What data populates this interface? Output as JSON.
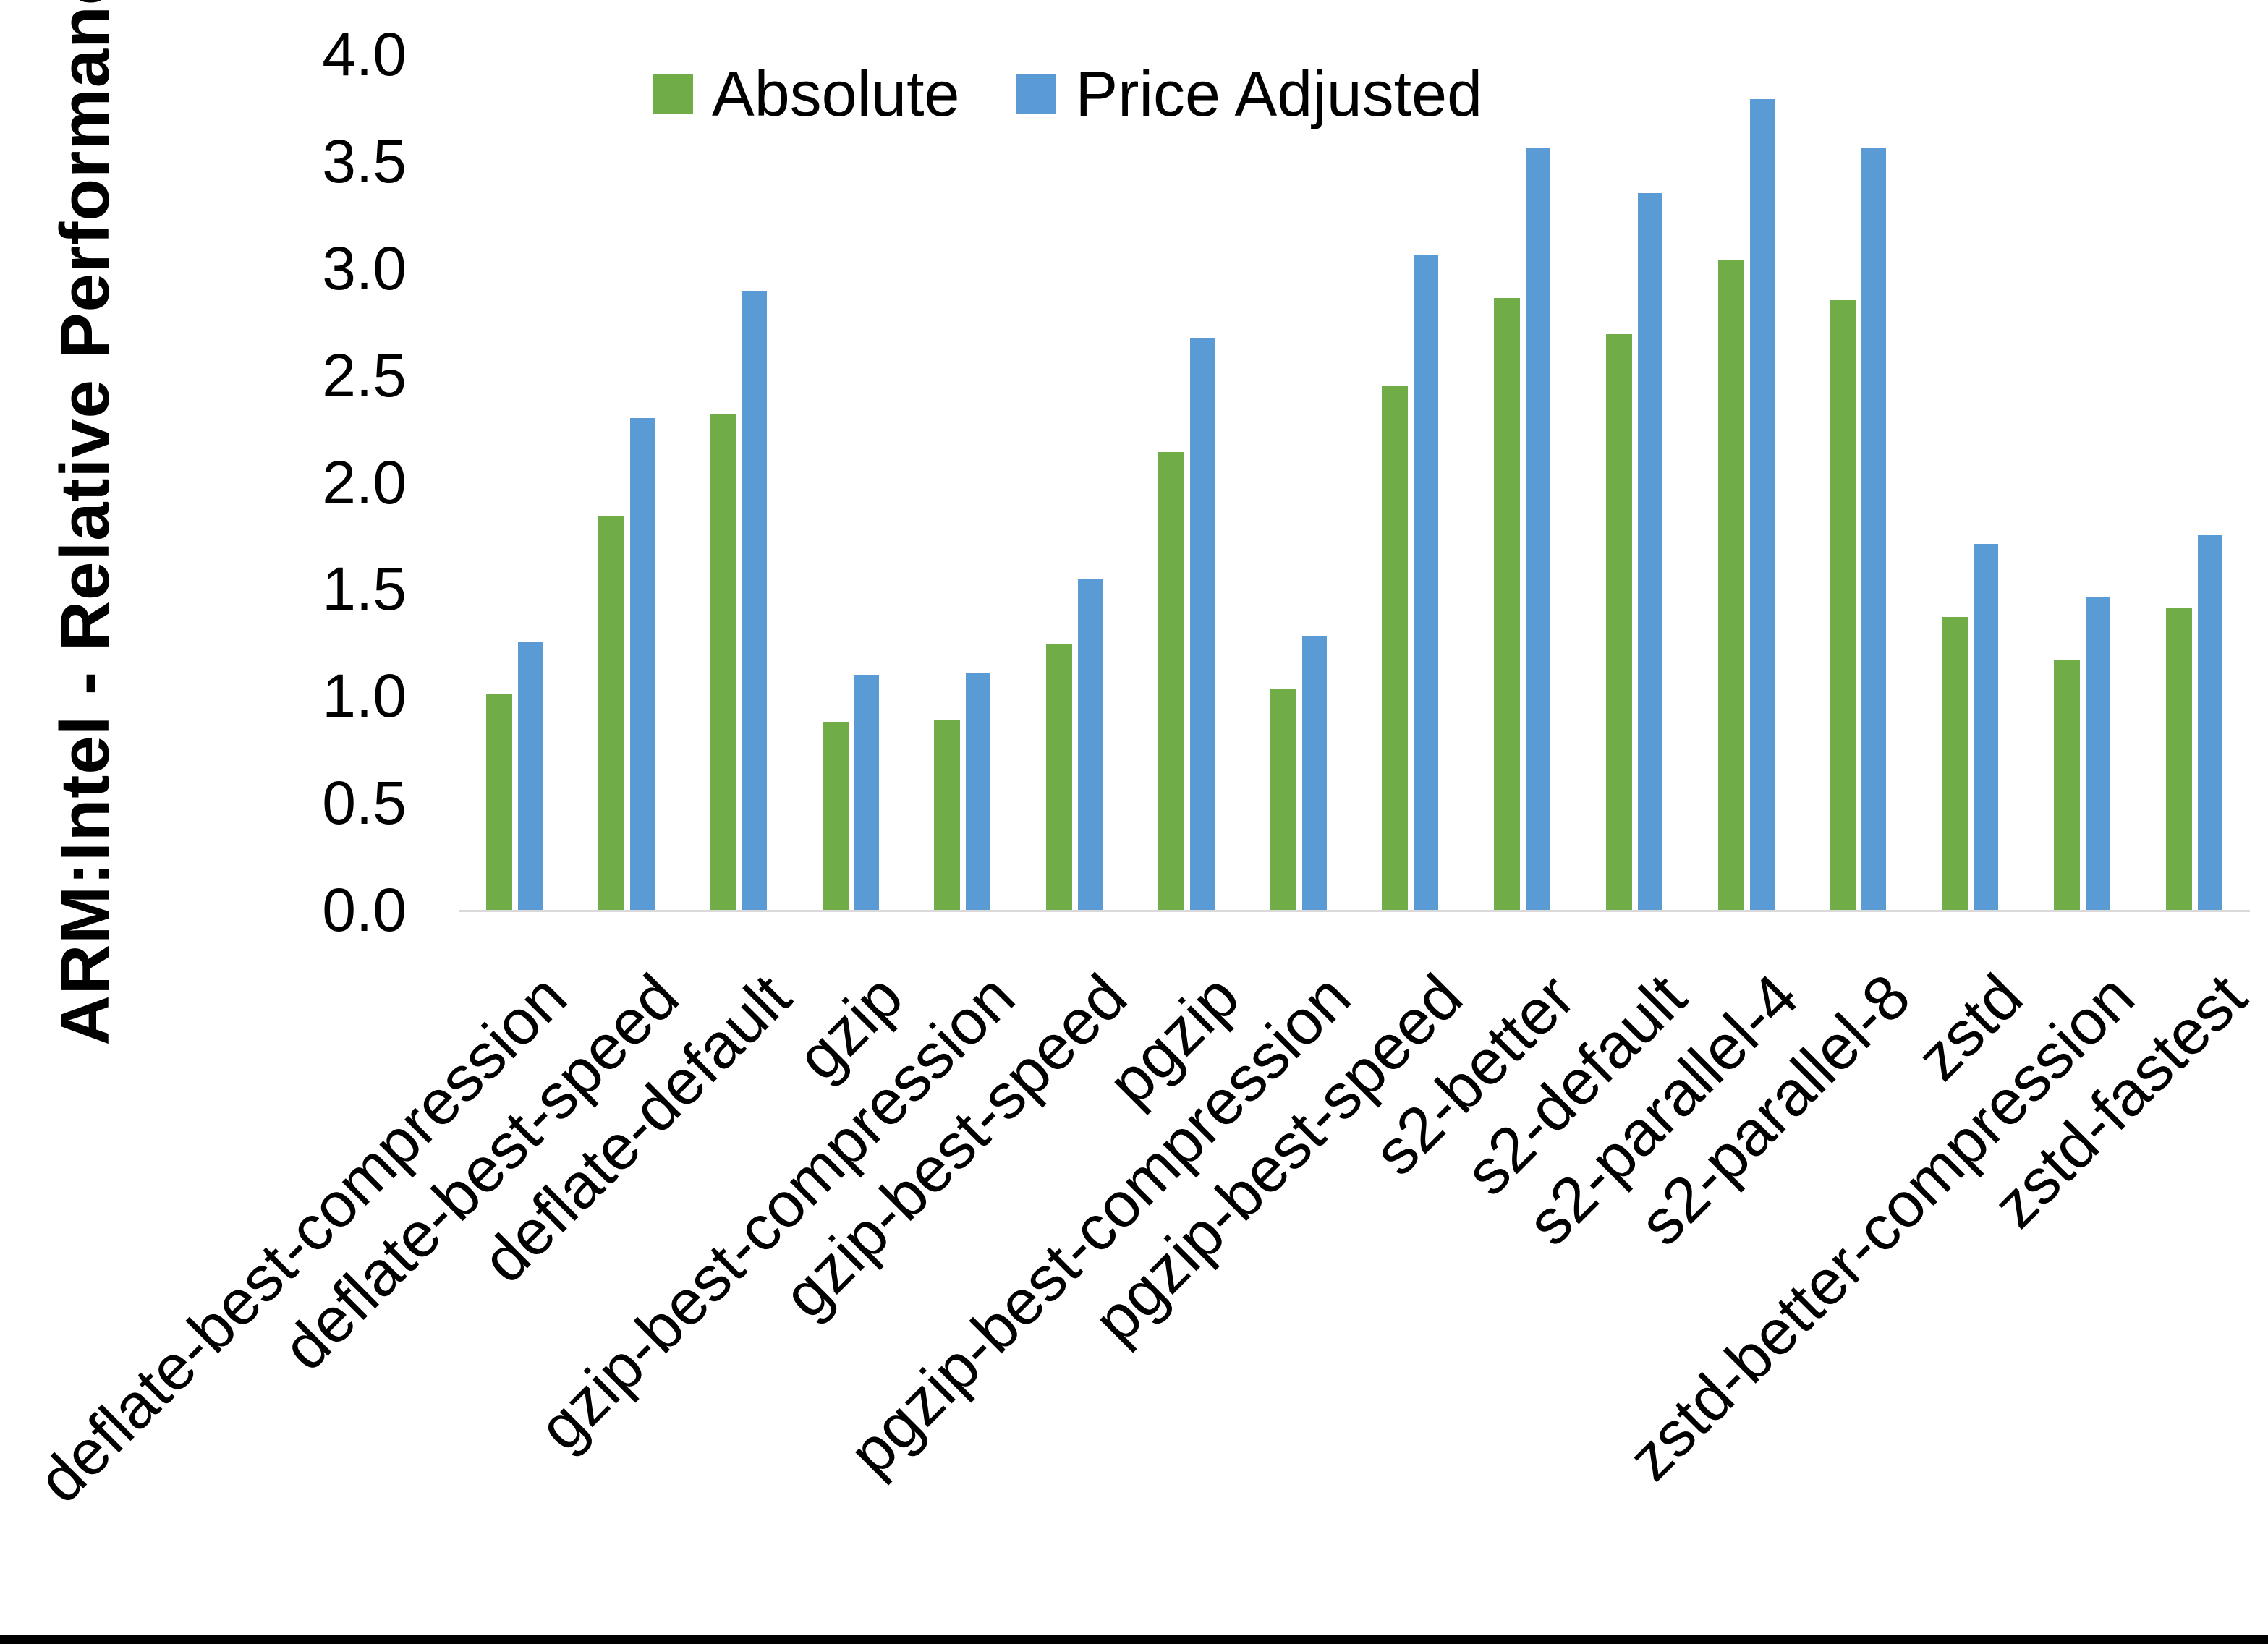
{
  "chart_data": {
    "type": "bar",
    "title": "",
    "ylabel": "ARM:Intel - Relative Performance",
    "xlabel": "",
    "ylim": [
      0.0,
      4.0
    ],
    "ytick_labels": [
      "0.0",
      "0.5",
      "1.0",
      "1.5",
      "2.0",
      "2.5",
      "3.0",
      "3.5",
      "4.0"
    ],
    "grid": false,
    "legend_position": "top-center-inside",
    "categories": [
      "deflate-best-compression",
      "deflate-best-speed",
      "deflate-default",
      "gzip",
      "gzip-best-compression",
      "gzip-best-speed",
      "pgzip",
      "pgzip-best-compression",
      "pgzip-best-speed",
      "s2-better",
      "s2-default",
      "s2-parallel-4",
      "s2-parallel-8",
      "zstd",
      "zstd-better-compression",
      "zstd-fastest"
    ],
    "series": [
      {
        "name": "Absolute",
        "color": "#70AD47",
        "values": [
          1.01,
          1.84,
          2.32,
          0.88,
          0.89,
          1.24,
          2.14,
          1.03,
          2.45,
          2.86,
          2.69,
          3.04,
          2.85,
          1.37,
          1.17,
          1.41
        ]
      },
      {
        "name": "Price Adjusted",
        "color": "#5B9BD5",
        "values": [
          1.25,
          2.3,
          2.89,
          1.1,
          1.11,
          1.55,
          2.67,
          1.28,
          3.06,
          3.56,
          3.35,
          3.79,
          3.56,
          1.71,
          1.46,
          1.75
        ]
      }
    ],
    "colors": {
      "axis_line": "#d9d9d9",
      "text": "#000000",
      "background": "#ffffff",
      "bottom_border": "#000000"
    }
  }
}
